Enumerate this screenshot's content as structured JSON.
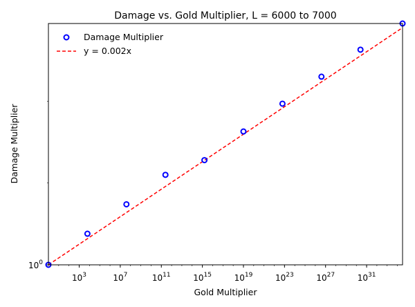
{
  "chart_data": {
    "type": "scatter",
    "title": "Damage vs. Gold Multiplier,   L = 6000 to 7000",
    "xlabel": "Gold Multiplier",
    "ylabel": "Damage Multiplier",
    "xscale": "log",
    "yscale": "log",
    "xlim_log10": [
      0,
      34.5
    ],
    "ylim_log10": [
      0,
      2.95
    ],
    "x_tick_exponents": [
      3,
      7,
      11,
      15,
      19,
      23,
      27,
      31
    ],
    "y_tick_exponents": [
      0
    ],
    "tick_base": "10",
    "grid": false,
    "legend_placement": "top-left",
    "series": [
      {
        "name": "Damage Multiplier",
        "kind": "scatter",
        "color": "#0000ff",
        "marker": "open-circle",
        "points": [
          {
            "x": "1e0",
            "y": "1e0"
          },
          {
            "x": "1e3.8",
            "y": "1e0.38"
          },
          {
            "x": "1e7.6",
            "y": "1e0.74"
          },
          {
            "x": "1e11.4",
            "y": "1e1.10"
          },
          {
            "x": "1e15.2",
            "y": "1e1.28"
          },
          {
            "x": "1e19.0",
            "y": "1e1.63"
          },
          {
            "x": "1e22.8",
            "y": "1e1.97"
          },
          {
            "x": "1e26.6",
            "y": "1e2.30"
          },
          {
            "x": "1e30.4",
            "y": "1e2.63"
          },
          {
            "x": "1e34.5",
            "y": "1e2.95"
          }
        ]
      },
      {
        "name": "y = 0.002x",
        "kind": "line",
        "color": "#ff0000",
        "dash": "dashed"
      }
    ]
  }
}
